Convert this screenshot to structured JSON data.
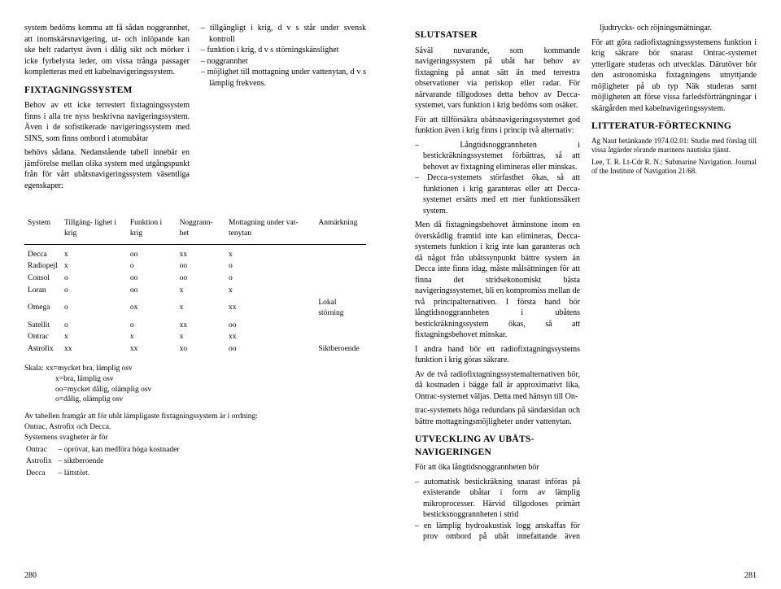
{
  "left": {
    "intro": "system bedöms komma att få sådan noggrannhet, att inomskärsnavigering, ut- och inlöpande kan ske helt radartyst även i dålig sikt och mörker i icke fyrbelysta leder, om vissa trånga passager kompletteras med ett kabelnavigeringssystem.",
    "h_fix": "FIXTAGNINGSSYSTEM",
    "fix1": "Behov av ett icke terrestert fixtagningssystem finns i alla tre nyss beskrivna navigeringssystem. Även i de sofistikerade navigeringssystem med SINS, som finns ombord i atomubåtar",
    "fix2": "behövs sådana. Nedanstående tabell innebär en jämförelse mellan olika system med utgångspunkt från för vårt ubåtsnavigeringssystem väsentliga egenskaper:",
    "li1": "tillgängligt i krig, d v s står under svensk kontroll",
    "li2": "funktion i krig, d v s störningskänslighet",
    "li3": "noggrannhet",
    "li4": "möjlighet till mottagning under vattenytan, d v s lämplig frekvens.",
    "table": {
      "headers": [
        "System",
        "Tillgäng-\nlighet i\nkrig",
        "Funktion\ni krig",
        "Noggrann-\nhet",
        "Mottagning\nunder vat-\ntenytan",
        "Anmärkning"
      ],
      "rows": [
        [
          "Decca",
          "x",
          "oo",
          "xx",
          "x",
          ""
        ],
        [
          "Radiopejl",
          "x",
          "o",
          "oo",
          "o",
          ""
        ],
        [
          "Consol",
          "o",
          "oo",
          "oo",
          "o",
          ""
        ],
        [
          "Loran",
          "o",
          "oo",
          "x",
          "x",
          ""
        ],
        [
          "Omega",
          "o",
          "ox",
          "x",
          "xx",
          "Lokal störning"
        ],
        [
          "Satellit",
          "o",
          "o",
          "xx",
          "oo",
          ""
        ],
        [
          "Ontrac",
          "x",
          "x",
          "x",
          "xx",
          ""
        ],
        [
          "Astrofix",
          "xx",
          "xx",
          "xo",
          "oo",
          "Siktberoende"
        ]
      ]
    },
    "legend_label": "Skala:",
    "legend1": "xx=mycket bra, lämplig osv",
    "legend2": "x=bra, lämplig osv",
    "legend3": "oo=mycket dålig, olämplig osv",
    "legend4": "o=dålig, olämplig osv",
    "order1": "Av tabellen framgår att för ubåt lämpligaste fixtagningssystem är i ordning:",
    "order2": "Ontrac, Astrofix och Decca.",
    "weak_head": "Systemens svagheter är för",
    "weak": [
      [
        "Ontrac",
        "– oprövat, kan medföra höga kostnader"
      ],
      [
        "Astrofix",
        "– siktberoende"
      ],
      [
        "Decca",
        "– lättstört."
      ]
    ],
    "pagenum": "280"
  },
  "right": {
    "h_slut": "SLUTSATSER",
    "p1": "Såväl nuvarande, som kommande navigeringssystem på ubåt har behov av fixtagning på annat sätt än med terrestra observationer via periskop eller radar. För närvarande tillgodoses detta behov av Decca-systemet, vars funktion i krig bedöms som osäker.",
    "p2": "För att tillförsäkra ubåtsnavigeringssystemet god funktion även i krig finns i princip två alternativ:",
    "li1": "Långtidsnoggrannheten i bestickräkningssystemet förbättras, så att behovet av fixtagning elimineras eller minskas.",
    "li2": "Decca-systemets störfasthet ökas, så att funktionen i krig garanteras eller att Decca-systemet ersätts med ett mer funktionssäkert system.",
    "p3": "Men då fixtagningsbehovet åtminstone inom en överskådlig framtid inte kan elimineras, Decca-systemets funktion i krig inte kan garanteras och då något från ubåtssynpunkt bättre system än Decca inte finns idag, måste målsättningen för att finna det stridsekonomiskt bästa navigeringssystemet, bli en kompromiss mellan de två principalternativen. I första hand bör långtidsnoggrannheten i ubåtens bestickräkningssystem ökas, så att fixtagningsbehovet minskar.",
    "p4": "I andra hand bör ett radiofixtagningssystems funktion i krig göras säkrare.",
    "p5": "Av de två radiofixtagningssystemalternativen bör, då kostnaden i bägge fall är approximativt lika, Ontrac-systemet väljas. Detta med hänsyn till On-",
    "p6": "trac-systemets höga redundans på sändarsidan och bättre mottagningsmöjligheter under vattenytan.",
    "h_utv": "UTVECKLING AV UBÅTS-NAVIGERINGEN",
    "p7": "För att öka långtidsnoggrannheten bör",
    "li3": "automatisk bestickräkning snarast införas på existerande ubåtar i form av lämplig mikroprocesser. Härvid tillgodoses primärt besticksnoggrannheten i strid",
    "li4": "en lämplig hydroakustisk logg anskaffas för prov ombord på ubåt innefattande även ljudtrycks- och röjningsmätningar.",
    "p8": "För att göra radiofixtagningssystemens funktion i krig säkrare bör snarast Ontrac-systemet ytterligare studeras och utvecklas. Därutöver bör den astronomiska fixtagningens utnyttjande möjligheter på ub typ Näk studeras samt möjligheten att förse vissa farledsförträngningar i skärgården med kabelnavigeringssystem.",
    "h_litt": "LITTERATUR-FÖRTECKNING",
    "ref1": "Ag Naut betänkande 1974.02.01: Studie med förslag till vissa åtgärder rörande marinens nautiska tjänst.",
    "ref2": "Lee, T. R. Lt-Cdr R. N.: Submarine Navigation. Journal of the Institute of Navigation 21/68.",
    "pagenum": "281"
  }
}
